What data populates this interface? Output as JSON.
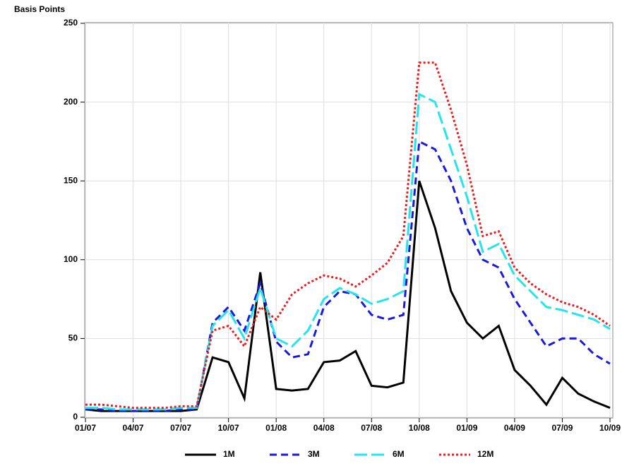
{
  "chart_data": {
    "type": "line",
    "y_axis_label": "Basis Points",
    "x": [
      "01/07",
      "02/07",
      "03/07",
      "04/07",
      "05/07",
      "06/07",
      "07/07",
      "08/07",
      "09/07",
      "10/07",
      "11/07",
      "12/07",
      "01/08",
      "02/08",
      "03/08",
      "04/08",
      "05/08",
      "06/08",
      "07/08",
      "08/08",
      "09/08",
      "10/08",
      "11/08",
      "12/08",
      "01/09",
      "02/09",
      "03/09",
      "04/09",
      "05/09",
      "06/09",
      "07/09",
      "08/09",
      "09/09",
      "10/09"
    ],
    "xticks": [
      "01/07",
      "04/07",
      "07/07",
      "10/07",
      "01/08",
      "04/08",
      "07/08",
      "10/08",
      "01/09",
      "04/09",
      "07/09",
      "10/09"
    ],
    "ylim": [
      0,
      250
    ],
    "yticks": [
      0,
      50,
      100,
      150,
      200,
      250
    ],
    "grid": true,
    "legend": "bottom",
    "series": [
      {
        "name": "1M",
        "color": "#000000",
        "dash": "solid",
        "values": [
          5,
          4,
          4,
          4,
          4,
          4,
          4,
          5,
          38,
          35,
          12,
          92,
          18,
          17,
          18,
          35,
          36,
          42,
          20,
          19,
          22,
          150,
          120,
          80,
          60,
          50,
          58,
          30,
          20,
          8,
          25,
          15,
          10,
          6
        ]
      },
      {
        "name": "3M",
        "color": "#1a1adb",
        "dash": "dashed",
        "values": [
          5,
          5,
          4,
          4,
          4,
          4,
          5,
          5,
          60,
          70,
          55,
          85,
          48,
          38,
          40,
          70,
          80,
          78,
          65,
          62,
          65,
          175,
          170,
          150,
          120,
          100,
          95,
          75,
          60,
          45,
          50,
          50,
          40,
          34
        ]
      },
      {
        "name": "6M",
        "color": "#22e5ee",
        "dash": "longdash",
        "values": [
          6,
          6,
          5,
          5,
          5,
          5,
          6,
          6,
          58,
          68,
          50,
          82,
          50,
          45,
          55,
          75,
          82,
          78,
          72,
          75,
          80,
          205,
          200,
          170,
          140,
          105,
          110,
          90,
          80,
          70,
          68,
          65,
          62,
          56
        ]
      },
      {
        "name": "12M",
        "color": "#ee1c1c",
        "dash": "dotted",
        "values": [
          8,
          8,
          7,
          6,
          6,
          6,
          7,
          7,
          55,
          58,
          45,
          70,
          62,
          78,
          85,
          90,
          88,
          83,
          90,
          98,
          115,
          225,
          225,
          195,
          160,
          115,
          118,
          95,
          85,
          78,
          73,
          70,
          65,
          58
        ]
      }
    ]
  }
}
